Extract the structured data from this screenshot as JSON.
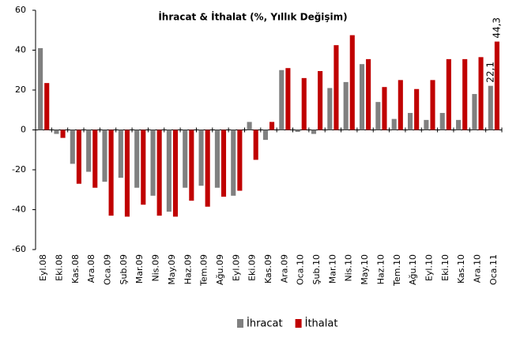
{
  "chart_data": {
    "type": "bar",
    "title": "İhracat & İthalat (%, Yıllık Değişim)",
    "categories": [
      "Eyl.08",
      "Eki.08",
      "Kas.08",
      "Ara.08",
      "Oca.09",
      "Şub.09",
      "Mar.09",
      "Nis.09",
      "May.09",
      "Haz.09",
      "Tem.09",
      "Ağu.09",
      "Eyl.09",
      "Eki.09",
      "Kas.09",
      "Ara.09",
      "Oca.10",
      "Şub.10",
      "Mar.10",
      "Nis.10",
      "May.10",
      "Haz.10",
      "Tem.10",
      "Ağu.10",
      "Eyl.10",
      "Eki.10",
      "Kas.10",
      "Ara.10",
      "Oca.11"
    ],
    "series": [
      {
        "name": "İhracat",
        "color": "#808080",
        "values": [
          41,
          -2,
          -17,
          -21,
          -26,
          -24,
          -29,
          -33,
          -41,
          -29,
          -28,
          -29,
          -33,
          4,
          -5,
          30,
          -1,
          -2,
          21,
          24,
          33,
          14,
          5.5,
          8.5,
          5,
          8.5,
          5,
          18,
          22.1
        ],
        "value_labels": [
          null,
          null,
          null,
          null,
          null,
          null,
          null,
          null,
          null,
          null,
          null,
          null,
          null,
          null,
          null,
          null,
          null,
          null,
          null,
          null,
          null,
          null,
          null,
          null,
          null,
          null,
          null,
          null,
          "22,1"
        ]
      },
      {
        "name": "İthalat",
        "color": "#c00000",
        "values": [
          23.5,
          -4,
          -27,
          -29,
          -43,
          -43.5,
          -37.5,
          -43,
          -43.5,
          -35.5,
          -38.5,
          -33.5,
          -30.5,
          -15,
          4,
          31,
          26,
          29.5,
          42.5,
          47.5,
          35.5,
          21.5,
          25,
          20.5,
          25,
          35.5,
          35.5,
          36.5,
          44.3
        ],
        "value_labels": [
          null,
          null,
          null,
          null,
          null,
          null,
          null,
          null,
          null,
          null,
          null,
          null,
          null,
          null,
          null,
          null,
          null,
          null,
          null,
          null,
          null,
          null,
          null,
          null,
          null,
          null,
          null,
          null,
          "44,3"
        ]
      }
    ],
    "ylim": [
      -60,
      60
    ],
    "yticks": [
      -60,
      -40,
      -20,
      0,
      20,
      40,
      60
    ],
    "legend": "bottom"
  }
}
